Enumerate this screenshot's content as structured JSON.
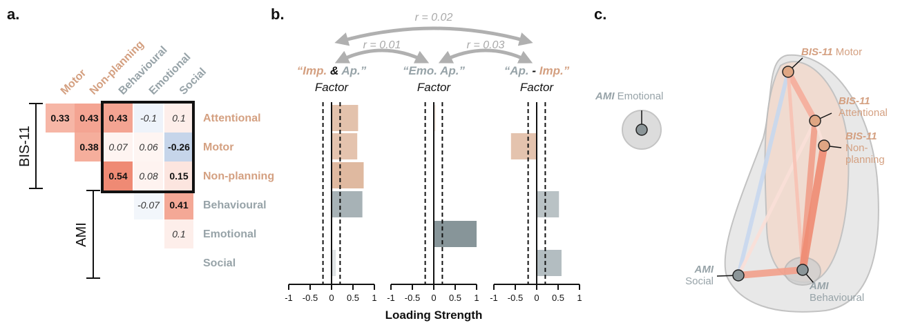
{
  "panels": {
    "a": "a.",
    "b": "b.",
    "c": "c."
  },
  "colors": {
    "bis": "#d4a081",
    "ami": "#97a3a8",
    "dark": "#111111",
    "arrow": "#b0b0b0",
    "bar_bis": "#dfb9a0",
    "bar_ami": "#a4b0b4",
    "bar_emo": "#879599"
  },
  "matrix": {
    "columns": [
      "Motor",
      "Non-planning",
      "Behavioural",
      "Emotional",
      "Social"
    ],
    "rows": [
      "Attentional",
      "Motor",
      "Non-planning",
      "Behavioural",
      "Emotional",
      "Social"
    ],
    "cells": [
      {
        "row": 0,
        "col": 0,
        "value": "0.33",
        "bold": true,
        "color": "#f6b6a6"
      },
      {
        "row": 0,
        "col": 1,
        "value": "0.43",
        "bold": true,
        "color": "#f4a492"
      },
      {
        "row": 0,
        "col": 2,
        "value": "0.43",
        "bold": true,
        "color": "#f4a492"
      },
      {
        "row": 0,
        "col": 3,
        "value": "-0.1",
        "bold": false,
        "color": "#eef3fa"
      },
      {
        "row": 0,
        "col": 4,
        "value": "0.1",
        "bold": false,
        "color": "#fdeeea"
      },
      {
        "row": 1,
        "col": 1,
        "value": "0.38",
        "bold": true,
        "color": "#f5ae9c"
      },
      {
        "row": 1,
        "col": 2,
        "value": "0.07",
        "bold": false,
        "color": "#fef4f1"
      },
      {
        "row": 1,
        "col": 3,
        "value": "0.06",
        "bold": false,
        "color": "#fef5f2"
      },
      {
        "row": 1,
        "col": 4,
        "value": "-0.26",
        "bold": true,
        "color": "#c6d5ea"
      },
      {
        "row": 2,
        "col": 2,
        "value": "0.54",
        "bold": true,
        "color": "#ef8a74"
      },
      {
        "row": 2,
        "col": 3,
        "value": "0.08",
        "bold": false,
        "color": "#fef3f0"
      },
      {
        "row": 2,
        "col": 4,
        "value": "0.15",
        "bold": true,
        "color": "#fce5df"
      },
      {
        "row": 3,
        "col": 3,
        "value": "-0.07",
        "bold": false,
        "color": "#f2f6fb"
      },
      {
        "row": 3,
        "col": 4,
        "value": "0.41",
        "bold": true,
        "color": "#f4a896"
      },
      {
        "row": 4,
        "col": 4,
        "value": "0.1",
        "bold": false,
        "color": "#fdeeea"
      }
    ],
    "group_bis": "BIS-11",
    "group_ami": "AMI"
  },
  "chart_data": {
    "type": "bar",
    "orientation": "horizontal",
    "categories": [
      "Attentional",
      "Motor",
      "Non-planning",
      "Behavioural",
      "Emotional",
      "Social"
    ],
    "xlabel": "Loading Strength",
    "xlim": [
      -1,
      1
    ],
    "xticks": [
      "-1",
      "-0.5",
      "0",
      "0.5",
      "1"
    ],
    "threshold_lines": [
      -0.2,
      0.2
    ],
    "series": [
      {
        "factor_parts": [
          "“Imp.",
          " & ",
          "Ap.”"
        ],
        "factor_line2": "Factor",
        "values": [
          0.62,
          0.6,
          0.75,
          0.72,
          0.0,
          0.1
        ]
      },
      {
        "factor_parts": [
          "“Emo. Ap.”"
        ],
        "factor_line2": "Factor",
        "values": [
          0.05,
          0.0,
          0.0,
          0.0,
          1.0,
          0.0
        ]
      },
      {
        "factor_parts": [
          "“Ap.",
          " - ",
          "Imp.”"
        ],
        "factor_line2": "Factor",
        "values": [
          0.0,
          -0.6,
          0.0,
          0.52,
          0.0,
          0.58
        ]
      }
    ],
    "correlations": [
      "r = 0.02",
      "r = 0.01",
      "r = 0.03"
    ]
  },
  "network": {
    "nodes": [
      {
        "id": "motor",
        "bold": "BIS-11",
        "rest": " Motor",
        "group": "bis"
      },
      {
        "id": "attentional",
        "bold": "BIS-11",
        "rest": "Attentional",
        "group": "bis"
      },
      {
        "id": "nonplanning",
        "bold": "BIS-11",
        "rest": "Non-",
        "rest2": "planning",
        "group": "bis"
      },
      {
        "id": "emotional",
        "bold": "AMI",
        "rest": " Emotional",
        "group": "ami"
      },
      {
        "id": "social",
        "bold": "AMI",
        "rest": "Social",
        "group": "ami"
      },
      {
        "id": "behavioural",
        "bold": "AMI",
        "rest": "Behavioural",
        "group": "ami"
      }
    ]
  }
}
